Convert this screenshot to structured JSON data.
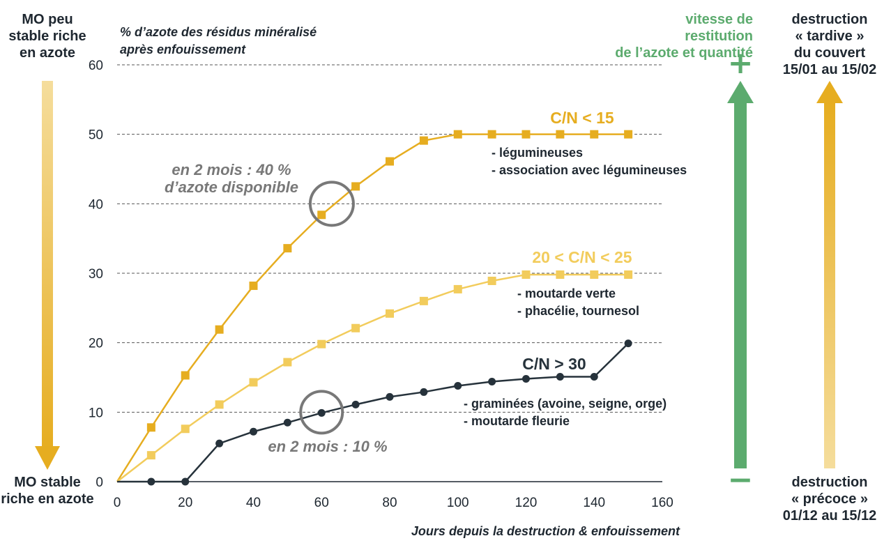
{
  "left_panel": {
    "top_label": [
      "MO peu",
      "stable riche",
      "en azote"
    ],
    "bottom_label": [
      "MO stable",
      "riche en azote"
    ]
  },
  "right_panel": {
    "speed_label": [
      "vitesse de restitution",
      "de l’azote et quantité"
    ],
    "plus_sign": "+",
    "minus_sign": "−",
    "late_label": [
      "destruction",
      "« tardive »",
      "du couvert",
      "15/01 au 15/02"
    ],
    "early_label": [
      "destruction",
      "« précoce »",
      "01/12 au 15/12"
    ]
  },
  "colors": {
    "cn_low": "#e6ad20",
    "cn_mid": "#f2cc5c",
    "cn_high": "#26323b",
    "green": "#5cab6e",
    "grid": "#555555",
    "annotation_gray": "#787878",
    "gradient_light": "#f5dd9c",
    "gradient_dark": "#e6ad20"
  },
  "chart_data": {
    "type": "line",
    "ylabel": [
      "% d’azote des résidus minéralisé",
      "après enfouissement"
    ],
    "xlabel": "Jours depuis la destruction & enfouissement",
    "xlim": [
      0,
      160
    ],
    "ylim": [
      0,
      60
    ],
    "x_ticks": [
      0,
      20,
      40,
      60,
      80,
      100,
      120,
      140,
      160
    ],
    "y_ticks": [
      0,
      10,
      20,
      30,
      40,
      50,
      60
    ],
    "grid": "horizontal dashed",
    "series": [
      {
        "name": "C/N < 15",
        "marker": "square",
        "color_key": "cn_low",
        "x": [
          0,
          10,
          20,
          30,
          40,
          50,
          60,
          70,
          80,
          90,
          100,
          110,
          120,
          130,
          140,
          150
        ],
        "y": [
          0,
          7.8,
          15.3,
          21.9,
          28.2,
          33.6,
          38.4,
          42.5,
          46.1,
          49.1,
          50,
          50,
          50,
          50,
          50,
          50
        ],
        "items": [
          "- légumineuses",
          "- association avec légumineuses"
        ]
      },
      {
        "name": "20 < C/N < 25",
        "marker": "square",
        "color_key": "cn_mid",
        "x": [
          0,
          10,
          20,
          30,
          40,
          50,
          60,
          70,
          80,
          90,
          100,
          110,
          120,
          130,
          140,
          150
        ],
        "y": [
          0,
          3.8,
          7.6,
          11.1,
          14.3,
          17.2,
          19.8,
          22.1,
          24.2,
          26,
          27.7,
          28.9,
          29.8,
          29.8,
          29.8,
          29.8
        ],
        "items": [
          "- moutarde verte",
          "- phacélie, tournesol"
        ]
      },
      {
        "name": "C/N > 30",
        "marker": "circle",
        "color_key": "cn_high",
        "x": [
          0,
          10,
          20,
          30,
          40,
          50,
          60,
          70,
          80,
          90,
          100,
          110,
          120,
          130,
          140,
          150
        ],
        "y": [
          0,
          0,
          0,
          5.5,
          7.2,
          8.5,
          9.9,
          11.1,
          12.2,
          12.9,
          13.8,
          14.4,
          14.8,
          15.1,
          15.1,
          19.9
        ],
        "items": [
          "- graminées (avoine, seigne, orge)",
          "- moutarde fleurie"
        ]
      }
    ],
    "annotations": [
      {
        "text": [
          "en 2 mois : 40 %",
          "d’azote disponible"
        ],
        "circle_at": {
          "x": 63,
          "y": 40
        }
      },
      {
        "text": [
          "en 2 mois : 10 %"
        ],
        "circle_at": {
          "x": 60,
          "y": 10
        }
      }
    ]
  }
}
